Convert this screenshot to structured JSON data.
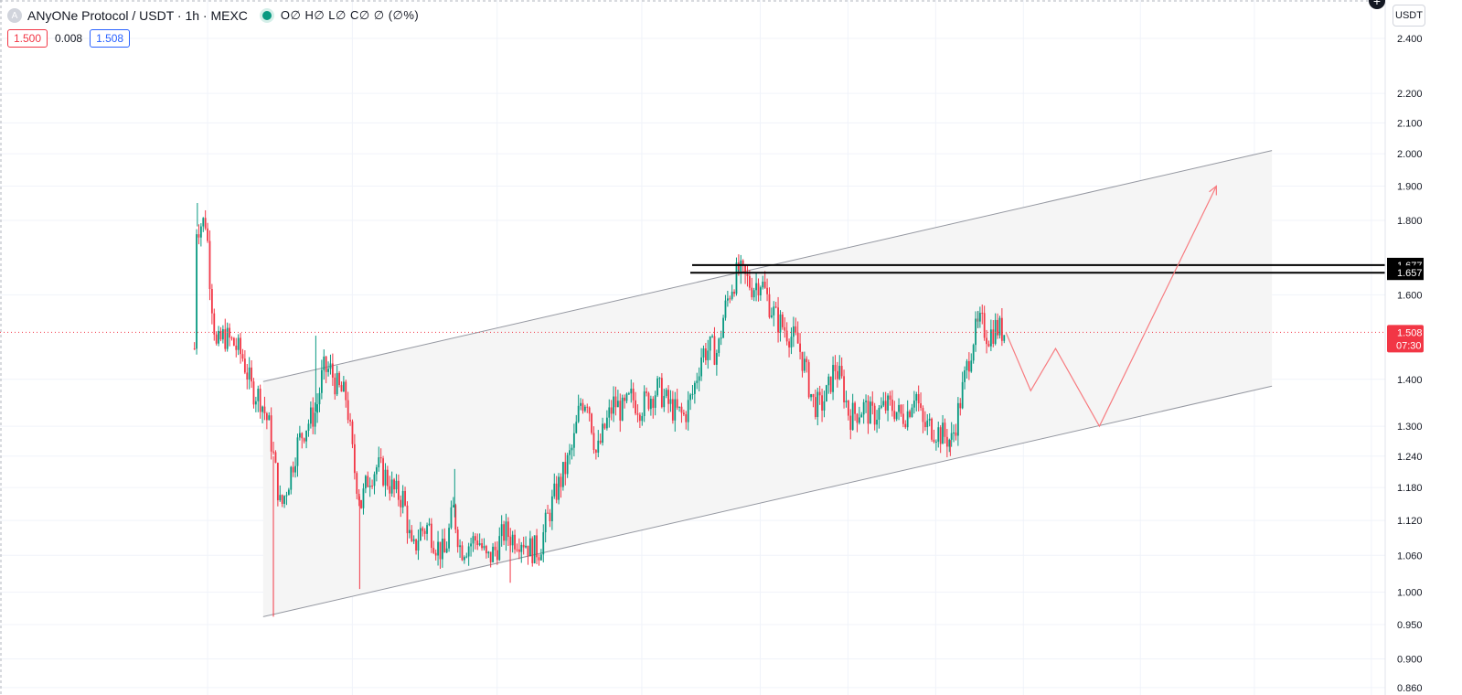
{
  "header": {
    "symbol_logo_letter": "A",
    "title": "ANyONe Protocol / USDT · 1h · MEXC",
    "ohlc": "O∅ H∅ L∅ C∅ ∅ (∅%)",
    "sell_price": "1.500",
    "spread": "0.008",
    "buy_price": "1.508",
    "currency_button": "USDT",
    "plus_button": "+"
  },
  "colors": {
    "up": "#089981",
    "down": "#f23645",
    "grid": "#f0f3fa",
    "channel_fill": "#f5f5f5",
    "channel_line": "#9598a1",
    "projection": "#f77c80"
  },
  "chart_data": {
    "type": "candlestick",
    "series_name": "ANyONe Protocol / USDT",
    "timeframe": "1h",
    "y_scale": "log",
    "ylim": [
      0.85,
      2.55
    ],
    "grid": true,
    "price_axis_ticks": [
      "2.400",
      "2.200",
      "2.100",
      "2.000",
      "1.900",
      "1.800",
      "1.600",
      "1.400",
      "1.300",
      "1.240",
      "1.180",
      "1.120",
      "1.060",
      "1.000",
      "0.950",
      "0.900",
      "0.860"
    ],
    "current_price": "1.508",
    "countdown": "07:30",
    "horizontal_levels": [
      {
        "label": "1.677",
        "value": 1.677
      },
      {
        "label": "1.657",
        "value": 1.657
      }
    ],
    "channel": {
      "upper_line": [
        [
          0.18,
          1.395
        ],
        [
          0.87,
          2.01
        ]
      ],
      "lower_line": [
        [
          0.18,
          0.962
        ],
        [
          0.87,
          1.385
        ]
      ]
    },
    "projection_path": [
      [
        0.688,
        1.508
      ],
      [
        0.705,
        1.375
      ],
      [
        0.722,
        1.47
      ],
      [
        0.752,
        1.3
      ],
      [
        0.832,
        1.9
      ]
    ],
    "price_path": [
      [
        0.133,
        1.47
      ],
      [
        0.134,
        1.78
      ],
      [
        0.141,
        1.8
      ],
      [
        0.144,
        1.62
      ],
      [
        0.148,
        1.47
      ],
      [
        0.153,
        1.5
      ],
      [
        0.16,
        1.48
      ],
      [
        0.166,
        1.45
      ],
      [
        0.172,
        1.38
      ],
      [
        0.178,
        1.36
      ],
      [
        0.184,
        1.3
      ],
      [
        0.188,
        1.22
      ],
      [
        0.192,
        1.14
      ],
      [
        0.198,
        1.2
      ],
      [
        0.203,
        1.26
      ],
      [
        0.209,
        1.3
      ],
      [
        0.216,
        1.33
      ],
      [
        0.221,
        1.42
      ],
      [
        0.226,
        1.42
      ],
      [
        0.231,
        1.38
      ],
      [
        0.237,
        1.36
      ],
      [
        0.242,
        1.22
      ],
      [
        0.247,
        1.15
      ],
      [
        0.252,
        1.2
      ],
      [
        0.258,
        1.22
      ],
      [
        0.264,
        1.2
      ],
      [
        0.27,
        1.17
      ],
      [
        0.276,
        1.16
      ],
      [
        0.282,
        1.06
      ],
      [
        0.287,
        1.1
      ],
      [
        0.293,
        1.11
      ],
      [
        0.298,
        1.08
      ],
      [
        0.304,
        1.06
      ],
      [
        0.31,
        1.14
      ],
      [
        0.315,
        1.07
      ],
      [
        0.321,
        1.08
      ],
      [
        0.327,
        1.09
      ],
      [
        0.333,
        1.05
      ],
      [
        0.339,
        1.07
      ],
      [
        0.345,
        1.1
      ],
      [
        0.351,
        1.09
      ],
      [
        0.357,
        1.09
      ],
      [
        0.363,
        1.07
      ],
      [
        0.369,
        1.07
      ],
      [
        0.374,
        1.12
      ],
      [
        0.38,
        1.17
      ],
      [
        0.386,
        1.21
      ],
      [
        0.392,
        1.26
      ],
      [
        0.397,
        1.35
      ],
      [
        0.402,
        1.36
      ],
      [
        0.408,
        1.24
      ],
      [
        0.414,
        1.3
      ],
      [
        0.42,
        1.35
      ],
      [
        0.426,
        1.33
      ],
      [
        0.432,
        1.36
      ],
      [
        0.438,
        1.34
      ],
      [
        0.444,
        1.36
      ],
      [
        0.45,
        1.38
      ],
      [
        0.456,
        1.35
      ],
      [
        0.462,
        1.33
      ],
      [
        0.468,
        1.32
      ],
      [
        0.474,
        1.37
      ],
      [
        0.48,
        1.46
      ],
      [
        0.486,
        1.47
      ],
      [
        0.491,
        1.46
      ],
      [
        0.495,
        1.55
      ],
      [
        0.5,
        1.62
      ],
      [
        0.505,
        1.66
      ],
      [
        0.51,
        1.64
      ],
      [
        0.515,
        1.62
      ],
      [
        0.52,
        1.64
      ],
      [
        0.526,
        1.58
      ],
      [
        0.531,
        1.54
      ],
      [
        0.536,
        1.52
      ],
      [
        0.541,
        1.5
      ],
      [
        0.546,
        1.48
      ],
      [
        0.551,
        1.42
      ],
      [
        0.556,
        1.35
      ],
      [
        0.561,
        1.34
      ],
      [
        0.566,
        1.37
      ],
      [
        0.571,
        1.43
      ],
      [
        0.576,
        1.39
      ],
      [
        0.581,
        1.32
      ],
      [
        0.586,
        1.33
      ],
      [
        0.591,
        1.34
      ],
      [
        0.596,
        1.32
      ],
      [
        0.601,
        1.33
      ],
      [
        0.606,
        1.34
      ],
      [
        0.611,
        1.34
      ],
      [
        0.616,
        1.32
      ],
      [
        0.621,
        1.33
      ],
      [
        0.626,
        1.38
      ],
      [
        0.631,
        1.3
      ],
      [
        0.636,
        1.3
      ],
      [
        0.641,
        1.29
      ],
      [
        0.646,
        1.28
      ],
      [
        0.651,
        1.27
      ],
      [
        0.656,
        1.34
      ],
      [
        0.661,
        1.42
      ],
      [
        0.666,
        1.5
      ],
      [
        0.671,
        1.53
      ],
      [
        0.676,
        1.5
      ],
      [
        0.681,
        1.52
      ],
      [
        0.686,
        1.51
      ],
      [
        0.688,
        1.508
      ]
    ],
    "wick_extremes": [
      [
        0.135,
        1.85
      ],
      [
        0.187,
        0.962
      ],
      [
        0.246,
        1.005
      ],
      [
        0.349,
        1.015
      ],
      [
        0.311,
        1.215
      ],
      [
        0.216,
        1.5
      ],
      [
        0.505,
        1.665
      ],
      [
        0.65,
        1.24
      ],
      [
        0.669,
        1.56
      ]
    ]
  }
}
